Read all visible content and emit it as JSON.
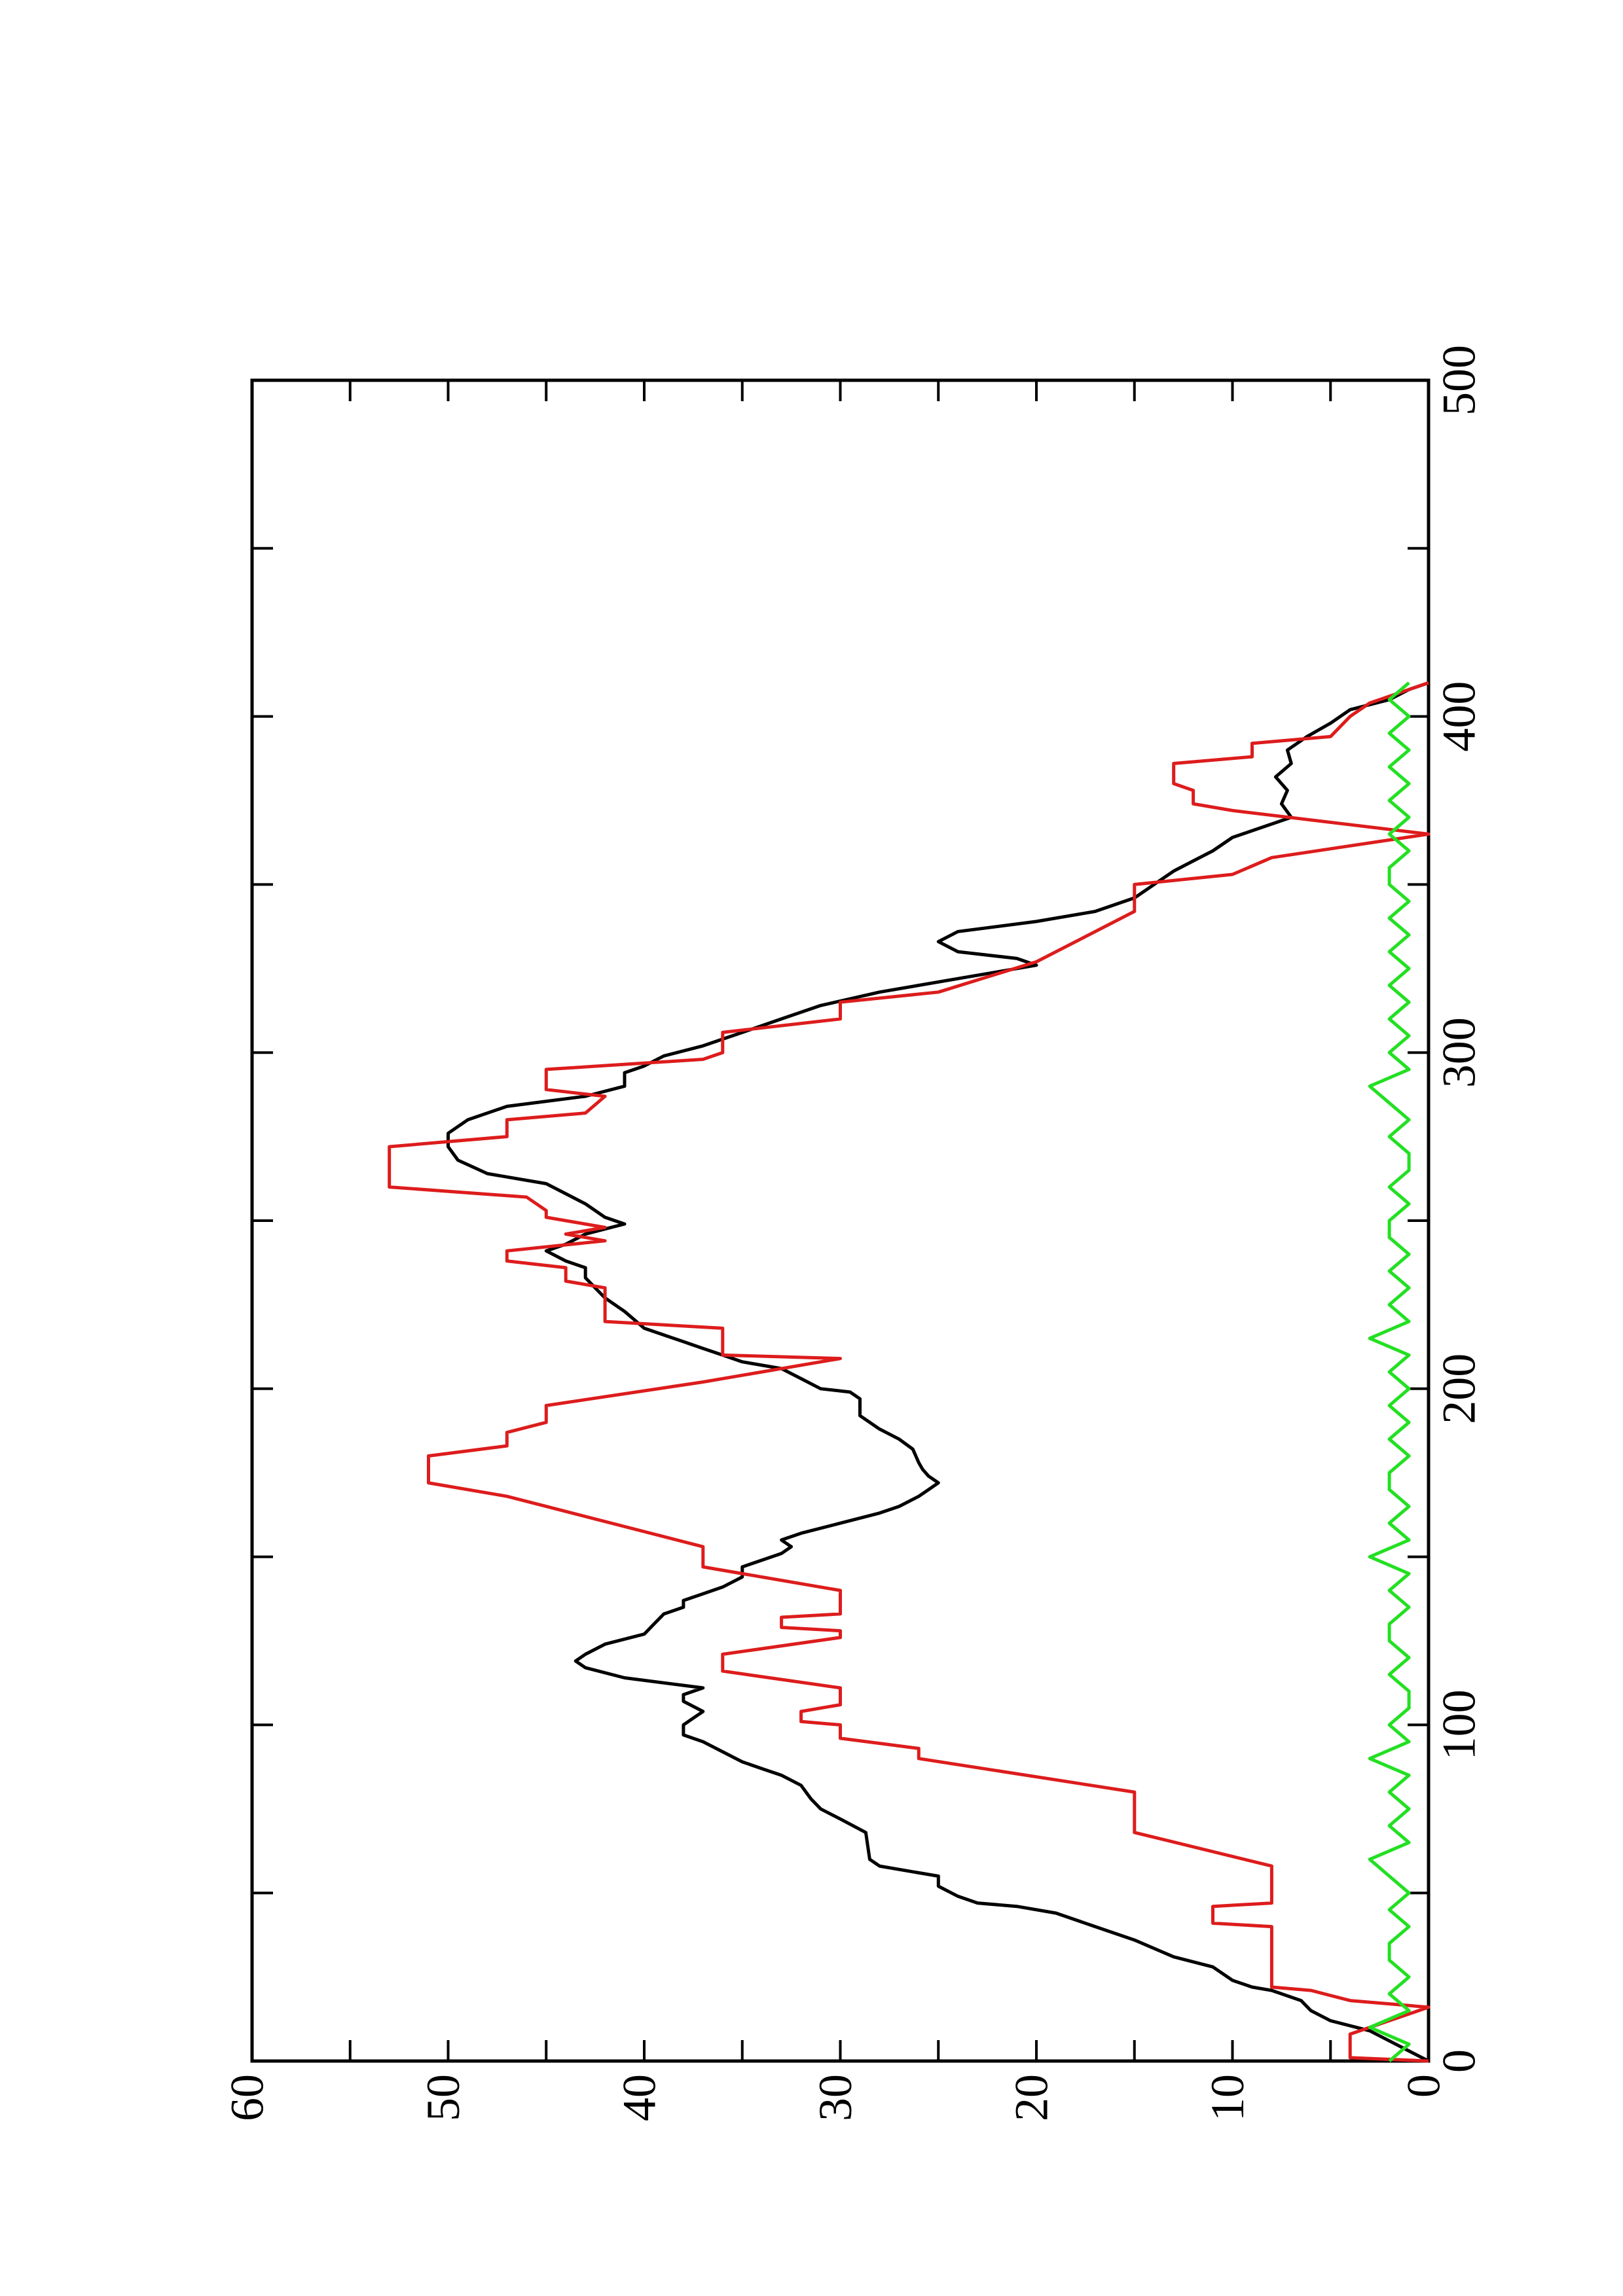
{
  "chart_data": {
    "type": "line",
    "orientation": "rotated",
    "xlim": [
      0,
      500
    ],
    "xticks": [
      0,
      100,
      200,
      300,
      400,
      500
    ],
    "xminor": [
      50,
      150,
      250,
      350,
      450
    ],
    "ylim": [
      0,
      60
    ],
    "yticks": [
      0,
      10,
      20,
      30,
      40,
      50,
      60
    ],
    "yminor": [
      5,
      15,
      25,
      35,
      45,
      55
    ],
    "grid": false,
    "series": [
      {
        "color": "#000000",
        "x": [
          0,
          3,
          6,
          9,
          12,
          15,
          18,
          21,
          22,
          24,
          28,
          31,
          36,
          40,
          44,
          46,
          47,
          49,
          52,
          55,
          56,
          58,
          60,
          68,
          72,
          75,
          78,
          82,
          85,
          87,
          89,
          92,
          95,
          97,
          100,
          102,
          104,
          107,
          109,
          111,
          114,
          117,
          119,
          121,
          124,
          127,
          130,
          133,
          135,
          137,
          139,
          141,
          144,
          147,
          149,
          151,
          153,
          155,
          157,
          160,
          163,
          165,
          168,
          170,
          172,
          174,
          176,
          178,
          182,
          185,
          188,
          192,
          197,
          199,
          200,
          203,
          206,
          208,
          210,
          212,
          214,
          218,
          223,
          227,
          230,
          233,
          236,
          238,
          241,
          243,
          246,
          249,
          251,
          255,
          258,
          261,
          264,
          268,
          272,
          276,
          280,
          284,
          287,
          290,
          294,
          296,
          299,
          302,
          306,
          310,
          314,
          318,
          322,
          326,
          328,
          330,
          333,
          336,
          339,
          342,
          346,
          350,
          354,
          357,
          360,
          364,
          368,
          370,
          374,
          378,
          382,
          386,
          390,
          394,
          398,
          402,
          405,
          408,
          410
        ],
        "values": [
          0,
          1,
          2,
          3,
          5,
          6,
          6.5,
          8,
          9,
          10,
          11,
          13,
          15,
          17,
          19,
          21,
          23,
          24,
          25,
          25,
          26,
          28,
          28.5,
          28.7,
          30,
          31,
          31.5,
          32,
          33,
          34,
          35,
          36,
          37,
          38,
          38,
          37.5,
          37,
          38,
          38,
          37,
          41,
          43,
          43.5,
          43,
          42,
          40,
          39.5,
          39,
          38,
          38,
          37,
          36,
          35,
          35,
          34,
          33,
          32.5,
          33,
          32,
          30,
          28,
          27,
          26,
          25.5,
          25,
          25.5,
          25.8,
          26,
          26.3,
          27,
          28,
          29,
          29,
          29.5,
          31,
          32,
          33,
          35,
          36,
          37,
          38,
          40,
          41,
          42,
          42.5,
          43,
          43,
          44,
          45,
          44,
          43,
          41,
          42,
          43,
          44,
          45,
          48,
          49.5,
          50,
          50,
          49,
          47,
          43,
          41,
          41,
          40,
          39,
          37,
          35,
          33,
          31,
          28,
          24,
          20,
          21,
          24,
          25,
          24,
          20,
          17,
          15,
          14,
          13,
          12,
          11,
          10,
          8,
          7,
          7.5,
          7.2,
          7.8,
          7.0,
          7.2,
          6.2,
          5,
          4,
          2,
          1,
          0
        ]
      },
      {
        "color": "#dd1c1c",
        "x": [
          0,
          1,
          8,
          16,
          18,
          21,
          22,
          40,
          41,
          46,
          47,
          58,
          68,
          80,
          90,
          93,
          96,
          100,
          101,
          104,
          106,
          111,
          116,
          121,
          126,
          128,
          129,
          132,
          133,
          140,
          147,
          153,
          165,
          168,
          172,
          180,
          183,
          187,
          190,
          195,
          202,
          209,
          210,
          218,
          220,
          230,
          232,
          236,
          238,
          241,
          244,
          246,
          248,
          251,
          253,
          257,
          260,
          272,
          275,
          280,
          282,
          287,
          289,
          295,
          298,
          300,
          306,
          310,
          315,
          318,
          327,
          342,
          350,
          353,
          358,
          365,
          372,
          374,
          378,
          380,
          386,
          388,
          392,
          394,
          400,
          404,
          410
        ],
        "values": [
          0,
          4,
          4,
          0,
          4,
          6,
          8,
          8,
          11,
          11,
          8,
          8,
          15,
          15,
          26,
          26,
          30,
          30,
          32,
          32,
          30,
          30,
          36,
          36,
          30,
          30,
          33,
          33,
          30,
          30,
          37,
          37,
          45,
          47,
          51,
          51,
          47,
          47,
          45,
          45,
          37,
          30,
          36,
          36,
          42,
          42,
          44,
          44,
          47,
          47,
          42,
          44,
          42,
          45,
          45,
          46,
          53,
          53,
          47,
          47,
          43,
          42,
          45,
          45,
          37,
          36,
          36,
          30,
          30,
          25,
          20,
          15,
          15,
          10,
          8,
          0,
          10,
          12,
          12,
          13,
          13,
          9,
          9,
          5,
          4,
          3,
          0
        ]
      },
      {
        "color": "#22e022",
        "x": [
          0,
          5,
          10,
          15,
          20,
          25,
          30,
          35,
          40,
          45,
          50,
          55,
          60,
          65,
          70,
          75,
          80,
          85,
          90,
          95,
          100,
          105,
          110,
          115,
          120,
          125,
          130,
          135,
          140,
          145,
          150,
          155,
          160,
          165,
          170,
          175,
          180,
          185,
          190,
          195,
          200,
          205,
          210,
          215,
          220,
          225,
          230,
          235,
          240,
          245,
          250,
          255,
          260,
          265,
          270,
          275,
          280,
          285,
          290,
          295,
          300,
          305,
          310,
          315,
          320,
          325,
          330,
          335,
          340,
          345,
          350,
          355,
          360,
          365,
          370,
          375,
          380,
          385,
          390,
          395,
          400,
          405,
          410
        ],
        "values": [
          2,
          1,
          3,
          1,
          2,
          1,
          2,
          2,
          1,
          2,
          1,
          2,
          3,
          1,
          2,
          1,
          2,
          1,
          3,
          1,
          2,
          1,
          1,
          2,
          1,
          2,
          2,
          1,
          2,
          1,
          3,
          1,
          2,
          1,
          2,
          2,
          1,
          2,
          1,
          2,
          1,
          2,
          1,
          3,
          1,
          2,
          1,
          2,
          1,
          2,
          2,
          1,
          2,
          1,
          1,
          2,
          1,
          2,
          3,
          1,
          2,
          1,
          2,
          1,
          2,
          1,
          2,
          1,
          2,
          1,
          2,
          2,
          1,
          2,
          1,
          2,
          1,
          2,
          1,
          2,
          1,
          2,
          1
        ]
      }
    ]
  }
}
